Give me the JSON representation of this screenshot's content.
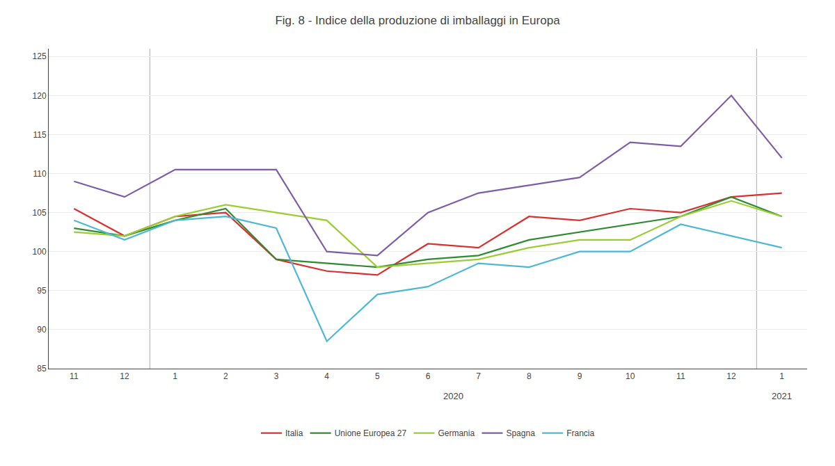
{
  "chart_data": {
    "type": "line",
    "title": "Fig. 8 - Indice della produzione di imballaggi in Europa",
    "categories": [
      "11",
      "12",
      "1",
      "2",
      "3",
      "4",
      "5",
      "6",
      "7",
      "8",
      "9",
      "10",
      "11",
      "12",
      "1"
    ],
    "series": [
      {
        "name": "Italia",
        "color": "#d93030",
        "values": [
          105.5,
          102.0,
          104.5,
          105.0,
          99.0,
          97.5,
          97.0,
          101.0,
          100.5,
          104.5,
          104.0,
          105.5,
          105.0,
          107.0,
          107.5
        ]
      },
      {
        "name": "Unione Europea 27",
        "color": "#2e8b2e",
        "values": [
          103.0,
          102.0,
          104.0,
          105.5,
          99.0,
          98.5,
          98.0,
          99.0,
          99.5,
          101.5,
          102.5,
          103.5,
          104.5,
          107.0,
          104.5
        ]
      },
      {
        "name": "Germania",
        "color": "#9acd32",
        "values": [
          102.5,
          102.0,
          104.5,
          106.0,
          105.0,
          104.0,
          98.0,
          98.5,
          99.0,
          100.5,
          101.5,
          101.5,
          104.5,
          106.5,
          104.5
        ]
      },
      {
        "name": "Spagna",
        "color": "#7b5ea7",
        "values": [
          109.0,
          107.0,
          110.5,
          110.5,
          110.5,
          100.0,
          99.5,
          105.0,
          107.5,
          108.5,
          109.5,
          114.0,
          113.5,
          120.0,
          112.0
        ]
      },
      {
        "name": "Francia",
        "color": "#4db8d4",
        "values": [
          104.0,
          101.5,
          104.0,
          104.5,
          103.0,
          88.5,
          94.5,
          95.5,
          98.5,
          98.0,
          100.0,
          100.0,
          103.5,
          102.0,
          100.5
        ]
      }
    ],
    "ylim": [
      85,
      126
    ],
    "yticks": [
      85,
      90,
      95,
      100,
      105,
      110,
      115,
      120,
      125
    ],
    "grid": true,
    "legend": "bottom",
    "annotations": [
      "2020",
      "2021"
    ]
  }
}
